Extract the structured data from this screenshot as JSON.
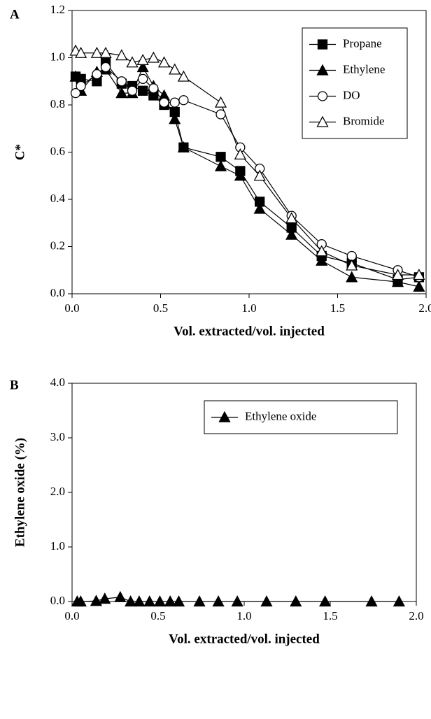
{
  "chart_data": [
    {
      "type": "line",
      "label": "A",
      "ylabel": "C*",
      "xlabel": "Vol. extracted/vol. injected",
      "xlim": [
        0,
        2
      ],
      "xticks": [
        {
          "value": 0,
          "label": "0.0"
        },
        0.5,
        {
          "value": 1,
          "label": "1.0"
        },
        1.5,
        {
          "value": 2,
          "label": "2.0"
        }
      ],
      "ylim": [
        0,
        1.2
      ],
      "yticks": [
        {
          "value": 0,
          "label": "0.0"
        },
        0.2,
        0.4,
        0.6,
        0.8,
        {
          "value": 1,
          "label": "1.0"
        },
        1.2
      ],
      "legend": "upper right",
      "x": [
        0.02,
        0.05,
        0.14,
        0.19,
        0.28,
        0.34,
        0.4,
        0.46,
        0.52,
        0.58,
        0.63,
        0.84,
        0.95,
        1.06,
        1.24,
        1.41,
        1.58,
        1.84,
        1.96
      ],
      "series": [
        {
          "name": "Propane",
          "color": "#000000",
          "marker": "square",
          "filled": true,
          "values": [
            0.92,
            0.91,
            0.9,
            0.98,
            0.89,
            0.88,
            0.86,
            0.84,
            0.8,
            0.77,
            0.62,
            0.58,
            0.52,
            0.39,
            0.28,
            0.16,
            0.13,
            0.06,
            0.07
          ]
        },
        {
          "name": "Ethylene",
          "color": "#000000",
          "marker": "triangle",
          "filled": true,
          "values": [
            0.92,
            0.86,
            0.94,
            0.95,
            0.85,
            0.85,
            0.96,
            0.88,
            0.84,
            0.74,
            0.62,
            0.54,
            0.5,
            0.36,
            0.25,
            0.14,
            0.07,
            0.05,
            0.03
          ]
        },
        {
          "name": "DO",
          "color": "#000000",
          "marker": "circle",
          "filled": false,
          "values": [
            0.85,
            0.88,
            0.93,
            0.96,
            0.9,
            0.86,
            0.91,
            0.87,
            0.81,
            0.81,
            0.82,
            0.76,
            0.62,
            0.53,
            0.33,
            0.21,
            0.16,
            0.1,
            0.07
          ]
        },
        {
          "name": "Bromide",
          "color": "#000000",
          "marker": "triangle",
          "filled": false,
          "values": [
            1.03,
            1.02,
            1.02,
            1.02,
            1.01,
            0.98,
            0.99,
            1.0,
            0.98,
            0.95,
            0.92,
            0.81,
            0.59,
            0.5,
            0.32,
            0.18,
            0.12,
            0.08,
            0.08
          ]
        }
      ]
    },
    {
      "type": "line",
      "label": "B",
      "ylabel": "Ethylene oxide (%)",
      "xlabel": "Vol. extracted/vol. injected",
      "xlim": [
        0,
        2
      ],
      "xticks": [
        {
          "value": 0,
          "label": "0.0"
        },
        0.5,
        {
          "value": 1,
          "label": "1.0"
        },
        1.5,
        {
          "value": 2,
          "label": "2.0"
        }
      ],
      "ylim": [
        0,
        4
      ],
      "yticks": [
        {
          "value": 0,
          "label": "0.0"
        },
        {
          "value": 1,
          "label": "1.0"
        },
        {
          "value": 2,
          "label": "2.0"
        },
        {
          "value": 3,
          "label": "3.0"
        },
        {
          "value": 4,
          "label": "4.0"
        }
      ],
      "legend": "upper right",
      "x": [
        0.03,
        0.05,
        0.14,
        0.19,
        0.28,
        0.34,
        0.39,
        0.45,
        0.51,
        0.57,
        0.62,
        0.74,
        0.85,
        0.96,
        1.13,
        1.3,
        1.47,
        1.74,
        1.9
      ],
      "series": [
        {
          "name": "Ethylene oxide",
          "color": "#000000",
          "marker": "triangle",
          "filled": true,
          "values": [
            0.0,
            0.0,
            0.01,
            0.05,
            0.08,
            0.0,
            0.0,
            0.0,
            0.0,
            0.0,
            0.0,
            0.0,
            0.0,
            0.0,
            0.0,
            0.0,
            0.0,
            0.0,
            0.0
          ]
        }
      ]
    }
  ]
}
